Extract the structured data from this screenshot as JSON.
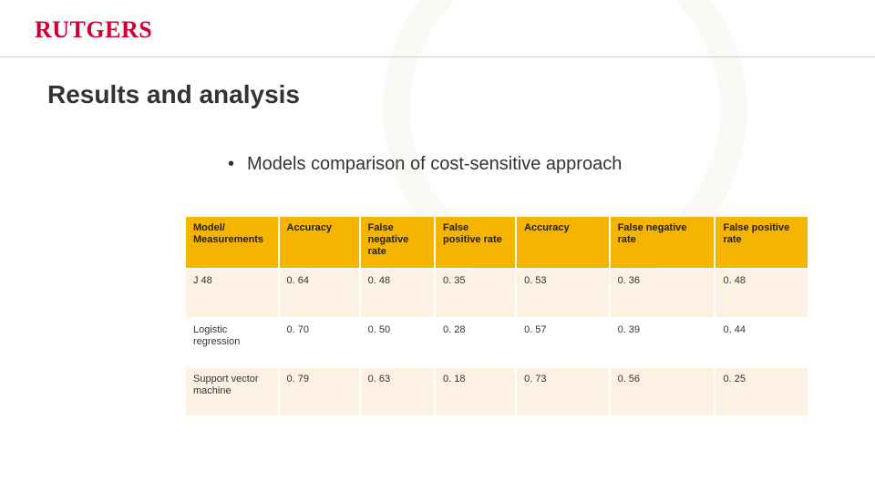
{
  "brand": {
    "name": "RUTGERS",
    "color": "#cc0033"
  },
  "title": "Results and analysis",
  "bullet": "Models comparison of cost-sensitive approach",
  "table": {
    "header_bg": "#f5b400",
    "row_bg": "#fdf1e3",
    "alt_row_bg": "#ffffff",
    "columns": [
      "Model/ Measurements",
      "Accuracy",
      "False negative rate",
      "False positive rate",
      "Accuracy",
      "False negative rate",
      "False positive rate"
    ],
    "rows": [
      {
        "label": "J 48",
        "vals": [
          "0. 64",
          "0. 48",
          "0. 35",
          "0. 53",
          "0. 36",
          "0. 48"
        ]
      },
      {
        "label": "Logistic regression",
        "vals": [
          "0. 70",
          "0. 50",
          "0. 28",
          "0. 57",
          "0. 39",
          "0. 44"
        ]
      },
      {
        "label": "Support vector machine",
        "vals": [
          "0. 79",
          "0. 63",
          "0. 18",
          "0. 73",
          "0. 56",
          "0. 25"
        ]
      }
    ]
  }
}
